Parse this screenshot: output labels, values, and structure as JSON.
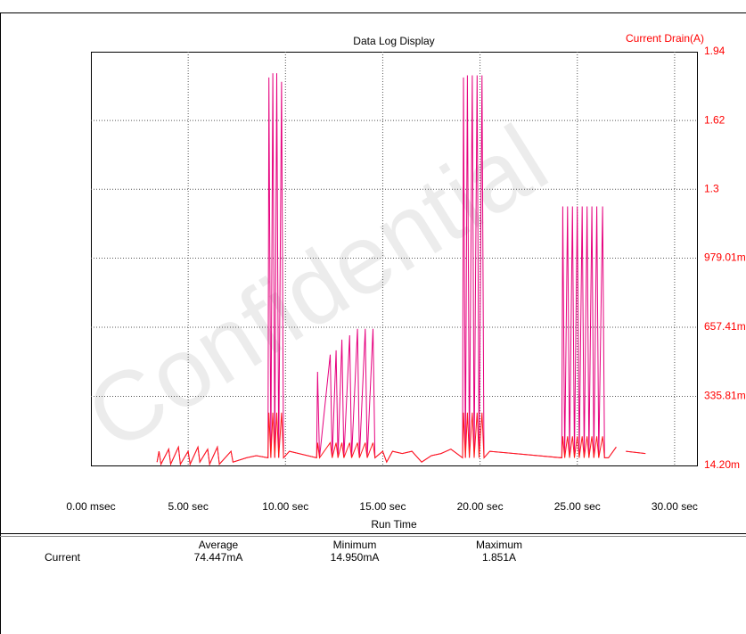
{
  "chart_data": {
    "type": "line",
    "title": "Data Log Display",
    "y_label": "Current Drain(A)",
    "x_label": "Run Time",
    "watermark": "Confidential",
    "grid": true,
    "x": [
      3.4,
      3.5,
      3.6,
      4.0,
      4.1,
      4.5,
      4.6,
      5.0,
      5.1,
      5.5,
      5.6,
      6.0,
      6.1,
      6.5,
      6.6,
      7.2,
      7.3,
      8.0,
      8.5,
      9.1,
      9.15,
      9.25,
      9.35,
      9.45,
      9.55,
      9.65,
      9.8,
      9.9,
      10.2,
      11.6,
      11.65,
      11.75,
      12.3,
      12.4,
      12.6,
      12.7,
      12.9,
      13.0,
      13.3,
      13.4,
      13.7,
      13.8,
      14.1,
      14.2,
      14.5,
      14.6,
      15.0,
      15.2,
      15.5,
      16.0,
      16.5,
      17.0,
      17.5,
      18.0,
      18.5,
      19.1,
      19.15,
      19.25,
      19.35,
      19.45,
      19.6,
      19.7,
      19.85,
      19.95,
      20.1,
      20.2,
      20.5,
      24.2,
      24.25,
      24.35,
      24.5,
      24.6,
      24.75,
      24.85,
      25.0,
      25.1,
      25.25,
      25.35,
      25.5,
      25.6,
      25.75,
      25.85,
      26.0,
      26.1,
      26.3,
      26.4,
      26.6,
      27.0,
      27.1,
      27.5,
      28.5
    ],
    "series": [
      {
        "color": "#e6007e",
        "values": [
          0.03,
          0.08,
          0.02,
          0.09,
          0.02,
          0.1,
          0.02,
          0.08,
          0.02,
          0.1,
          0.03,
          0.09,
          0.02,
          0.1,
          0.02,
          0.08,
          0.03,
          0.05,
          0.06,
          0.05,
          1.82,
          0.05,
          1.84,
          0.05,
          1.84,
          0.05,
          1.8,
          0.05,
          0.08,
          0.05,
          0.45,
          0.05,
          0.53,
          0.05,
          0.55,
          0.05,
          0.6,
          0.05,
          0.62,
          0.05,
          0.65,
          0.05,
          0.65,
          0.05,
          0.65,
          0.05,
          0.08,
          0.03,
          0.08,
          0.07,
          0.08,
          0.03,
          0.06,
          0.07,
          0.09,
          0.05,
          1.82,
          0.05,
          1.83,
          0.05,
          1.83,
          0.05,
          1.83,
          0.05,
          1.83,
          0.05,
          0.08,
          0.05,
          1.22,
          0.05,
          1.22,
          0.05,
          1.22,
          0.05,
          1.22,
          0.05,
          1.22,
          0.05,
          1.22,
          0.05,
          1.22,
          0.05,
          1.22,
          0.05,
          1.22,
          0.05,
          0.05,
          0.1,
          null,
          0.08,
          0.07
        ]
      },
      {
        "color": "#ff1a1a",
        "values": [
          0.03,
          0.08,
          0.02,
          0.09,
          0.02,
          0.1,
          0.02,
          0.08,
          0.02,
          0.1,
          0.03,
          0.09,
          0.02,
          0.1,
          0.02,
          0.08,
          0.03,
          0.05,
          0.06,
          0.05,
          0.26,
          0.05,
          0.26,
          0.05,
          0.26,
          0.05,
          0.26,
          0.05,
          0.08,
          0.05,
          0.12,
          0.05,
          0.12,
          0.05,
          0.12,
          0.05,
          0.12,
          0.05,
          0.12,
          0.05,
          0.12,
          0.05,
          0.12,
          0.05,
          0.12,
          0.05,
          0.08,
          0.03,
          0.08,
          0.07,
          0.08,
          0.03,
          0.06,
          0.07,
          0.09,
          0.05,
          0.26,
          0.05,
          0.26,
          0.05,
          0.26,
          0.05,
          0.26,
          0.05,
          0.26,
          0.05,
          0.08,
          0.05,
          0.15,
          0.05,
          0.15,
          0.05,
          0.15,
          0.05,
          0.15,
          0.05,
          0.15,
          0.05,
          0.15,
          0.05,
          0.15,
          0.05,
          0.15,
          0.05,
          0.15,
          0.05,
          0.05,
          0.1,
          null,
          0.08,
          0.07
        ]
      }
    ],
    "xlim": [
      0,
      31.15
    ],
    "xticks": [
      {
        "value": 0,
        "label": "0.00 msec"
      },
      {
        "value": 5,
        "label": "5.00 sec"
      },
      {
        "value": 10,
        "label": "10.00 sec"
      },
      {
        "value": 15,
        "label": "15.00 sec"
      },
      {
        "value": 20,
        "label": "20.00 sec"
      },
      {
        "value": 25,
        "label": "25.00 sec"
      },
      {
        "value": 30,
        "label": "30.00 sec"
      }
    ],
    "ylim": [
      0.0142,
      1.94
    ],
    "yticks": [
      {
        "value": 0.0142,
        "label": "14.20m"
      },
      {
        "value": 0.33581,
        "label": "335.81m"
      },
      {
        "value": 0.65741,
        "label": "657.41m"
      },
      {
        "value": 0.97901,
        "label": "979.01m"
      },
      1.3,
      1.62,
      1.94
    ],
    "stats": {
      "headers": [
        "Average",
        "Minimum",
        "Maximum"
      ],
      "row_label": "Current",
      "values": [
        "74.447mA",
        "14.950mA",
        "1.851A"
      ]
    }
  }
}
